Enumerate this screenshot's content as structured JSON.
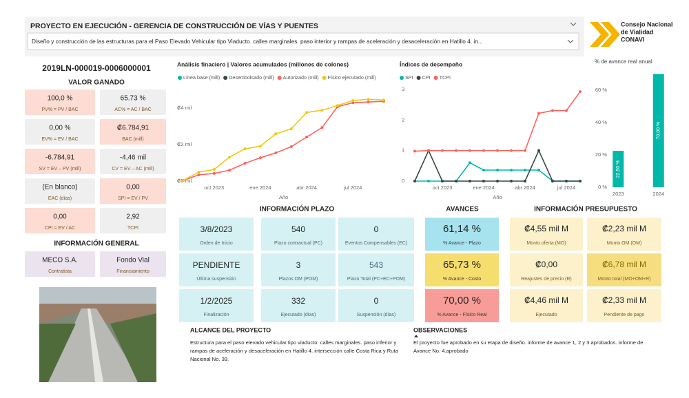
{
  "header": {
    "title": "PROYECTO EN EJECUCIÓN - GERENCIA DE CONSTRUCCIÓN DE VÍAS Y PUENTES",
    "subtitle": "Diseño y construcción de las estructuras para el Paso Elevado Vehicular tipo Viaducto. calles marginales. paso interior y rampas de aceleración y desaceleración en Hatillo 4. in..."
  },
  "logo": {
    "lines": [
      "Consejo Nacional",
      "de Vialidad",
      "CONAVI"
    ]
  },
  "project_code": "2019LN-000019-0006000001",
  "valor_ganado": {
    "title": "VALOR GANADO",
    "cards": [
      {
        "value": "100,0 %",
        "label": "PV% = PV / BAC"
      },
      {
        "value": "65.73 %",
        "label": "AC% = AC / BAC"
      },
      {
        "value": "0,00 %",
        "label": "EV% = EV / BAC"
      },
      {
        "value": "₡6.784,91",
        "label": "BAC (mill)"
      },
      {
        "value": "-6.784,91",
        "label": "SV = EV – PV (mill)"
      },
      {
        "value": "-4,46 mil",
        "label": "CV = EV – AC (mill)"
      },
      {
        "value": "(En blanco)",
        "label": "EAC (días)"
      },
      {
        "value": "0,00",
        "label": "SPI = EV / PV"
      },
      {
        "value": "0,00",
        "label": "CPI = EV / AC"
      },
      {
        "value": "2,92",
        "label": "TCPI"
      }
    ]
  },
  "informacion_general": {
    "title": "INFORMACIÓN GENERAL",
    "cards": [
      {
        "value": "MECO S.A.",
        "label": "Contratista"
      },
      {
        "value": "Fondo Vial",
        "label": "Financiamiento"
      }
    ]
  },
  "chart_data": [
    {
      "type": "line",
      "title": "Análisis finaciero | Valores acumulados (millones de colones)",
      "x_label": "Año",
      "x": [
        "2023-08",
        "2023-09",
        "2023-10",
        "2023-11",
        "2023-12",
        "2024-01",
        "2024-02",
        "2024-03",
        "2024-04",
        "2024-05",
        "2024-06",
        "2024-07",
        "2024-08",
        "2024-09"
      ],
      "xlim": [
        "2023-08",
        "2024-09"
      ],
      "xticks": [
        {
          "value": "2023-10",
          "label": "oct 2023"
        },
        {
          "value": "2024-01",
          "label": "ene 2024"
        },
        {
          "value": "2024-04",
          "label": "abr 2024"
        },
        {
          "value": "2024-07",
          "label": "jul 2024"
        }
      ],
      "ylim": [
        0,
        4.8
      ],
      "yticks": [
        {
          "value": 0,
          "label": "₡0 mil"
        },
        {
          "value": 2,
          "label": "₡2 mil"
        },
        {
          "value": 4,
          "label": "₡4 mil"
        }
      ],
      "series": [
        {
          "name": "Línea base (mill)",
          "color": "#01b8aa",
          "values": [
            null,
            null,
            null,
            null,
            null,
            null,
            null,
            null,
            null,
            null,
            null,
            null,
            null,
            null
          ]
        },
        {
          "name": "Desembolsado (mill)",
          "color": "#374649",
          "values": [
            null,
            null,
            null,
            null,
            null,
            null,
            null,
            null,
            null,
            null,
            null,
            null,
            null,
            null
          ]
        },
        {
          "name": "Autorizado (mill)",
          "color": "#fd625e",
          "values": [
            0.04,
            0.34,
            0.42,
            0.6,
            0.98,
            1.28,
            1.55,
            1.89,
            2.42,
            2.94,
            4.08,
            4.3,
            4.34,
            4.38
          ]
        },
        {
          "name": "Físico ejecutado (mill)",
          "color": "#f2c80f",
          "values": [
            0.04,
            0.49,
            0.64,
            1.32,
            1.77,
            1.92,
            2.6,
            2.87,
            3.77,
            3.89,
            4.15,
            4.42,
            4.49,
            4.45
          ]
        }
      ]
    },
    {
      "type": "line",
      "title": "Índices de desempeño",
      "x_label": "Año",
      "x": [
        "2023-08",
        "2023-09",
        "2023-10",
        "2023-11",
        "2023-12",
        "2024-01",
        "2024-02",
        "2024-03",
        "2024-04",
        "2024-05",
        "2024-06",
        "2024-07",
        "2024-08"
      ],
      "xlim": [
        "2023-08",
        "2024-08"
      ],
      "xticks": [
        {
          "value": "2023-10",
          "label": "oct 2023"
        },
        {
          "value": "2024-01",
          "label": "ene 2024"
        },
        {
          "value": "2024-04",
          "label": "abr 2024"
        },
        {
          "value": "2024-07",
          "label": "jul 2024"
        }
      ],
      "ylim": [
        0,
        3
      ],
      "yticks": [
        0,
        1,
        2,
        3
      ],
      "series": [
        {
          "name": "SPI",
          "color": "#01b8aa",
          "values": [
            0,
            0,
            0,
            0,
            0.6,
            0.36,
            0.36,
            0.36,
            0.36,
            0.36,
            0,
            0,
            0
          ]
        },
        {
          "name": "CPI",
          "color": "#374649",
          "values": [
            0,
            1,
            0,
            0,
            0,
            0,
            0,
            0,
            0,
            1,
            0,
            0,
            0
          ]
        },
        {
          "name": "TCPI",
          "color": "#fd625e",
          "values": [
            0.98,
            1,
            1,
            1,
            1,
            1,
            1,
            1,
            1,
            2.22,
            2.31,
            2.31,
            2.93
          ]
        }
      ]
    },
    {
      "type": "bar",
      "title": "% de avance real anual",
      "categories": [
        "2023",
        "2024"
      ],
      "values": [
        22.5,
        70
      ],
      "value_labels": [
        "22,50 %",
        "70,00 %"
      ],
      "color": "#01b8aa",
      "ylim": [
        0,
        71
      ],
      "yticks": [
        {
          "value": 0,
          "label": "0 %"
        },
        {
          "value": 20,
          "label": "20 %"
        },
        {
          "value": 40,
          "label": "40 %"
        },
        {
          "value": 60,
          "label": "60 %"
        }
      ]
    }
  ],
  "informacion_plazo": {
    "title": "INFORMACIÓN PLAZO",
    "cards": [
      {
        "value": "3/8/2023",
        "label": "Orden de Inicio"
      },
      {
        "value": "540",
        "label": "Plazo contractual (PC)"
      },
      {
        "value": "0",
        "label": "Eventos Compensables (EC)"
      },
      {
        "value": "PENDIENTE",
        "label": "Última suspensión"
      },
      {
        "value": "3",
        "label": "Plazos OM (POM)"
      },
      {
        "value": "543",
        "label": "Plazo Total (PC+EC+POM)"
      },
      {
        "value": "1/2/2025",
        "label": "Finalización"
      },
      {
        "value": "332",
        "label": "Ejecutado (días)"
      },
      {
        "value": "0",
        "label": "Suspensión (días)"
      }
    ]
  },
  "avances": {
    "title": "AVANCES",
    "cards": [
      {
        "value": "61,14 %",
        "label": "% Avance - Plazo"
      },
      {
        "value": "65,73 %",
        "label": "% Avance - Costo"
      },
      {
        "value": "70,00 %",
        "label": "% Avance - Físico Real"
      }
    ]
  },
  "informacion_presupuesto": {
    "title": "INFORMACIÓN PRESUPUESTO",
    "cards": [
      {
        "value": "₡4,55 mil M",
        "label": "Monto oferta (MO)"
      },
      {
        "value": "₡2,23 mil M",
        "label": "Monto OM (OM)"
      },
      {
        "value": "₡0,00",
        "label": "Reajustes de precio (R)"
      },
      {
        "value": "₡6,78 mil M",
        "label": "Monto total (MO+OM+R)"
      },
      {
        "value": "₡4,46 mil M",
        "label": "Ejecutado"
      },
      {
        "value": "₡2,33 mil M",
        "label": "Pendiente de pago"
      }
    ]
  },
  "alcance": {
    "title": "ALCANCE DEL PROYECTO",
    "lines": [
      "Estructura para el paso elevado vehicular tipo viaducto. calles marginales. paso inferior y",
      "rampas de aceleración y desaceleración en Hatillo 4. intersección calle Costa Rica y Ruta",
      "Nacional No. 39."
    ]
  },
  "observaciones": {
    "title": "OBSERVACIONES",
    "lines": [
      "El proyecto fue aprobado en su etapa de diseño. informe de avance 1, 2 y 3 aprobados. informe de",
      "Avance No. 4.aprobado"
    ]
  }
}
